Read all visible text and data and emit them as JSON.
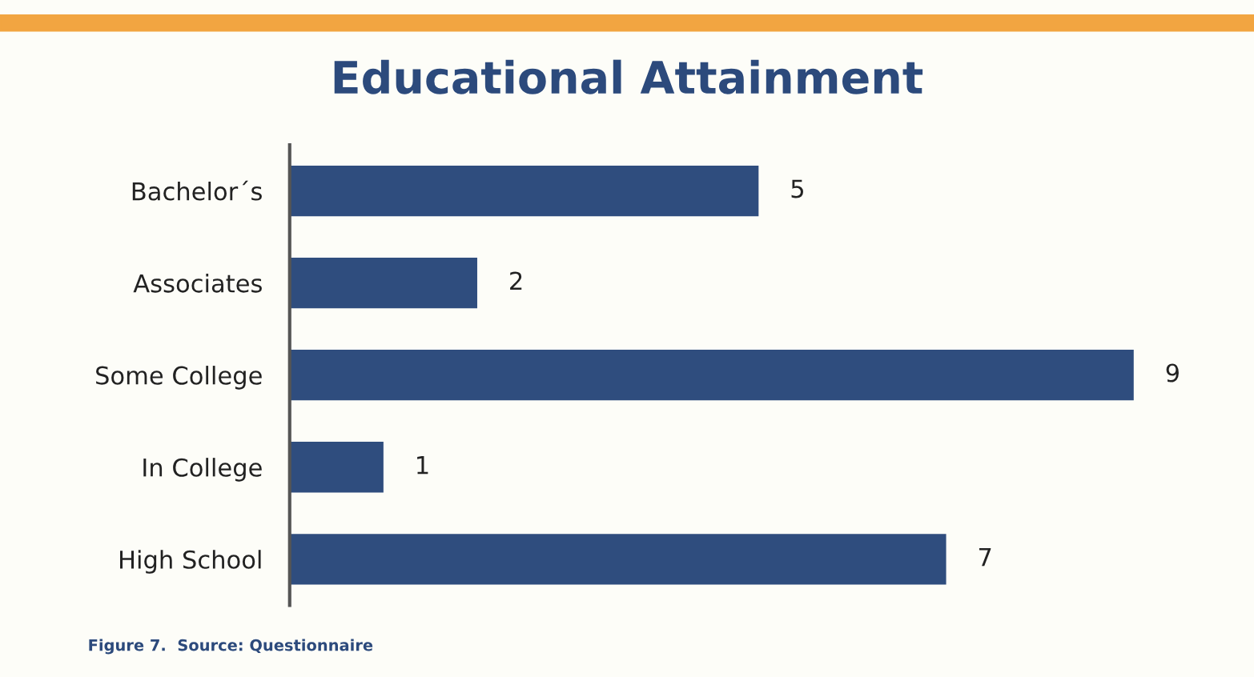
{
  "chart_data": {
    "type": "bar",
    "orientation": "horizontal",
    "title": "Educational Attainment",
    "categories": [
      "Bachelor´s",
      "Associates",
      "Some College",
      "In College",
      "High School"
    ],
    "values": [
      5,
      2,
      9,
      1,
      7
    ],
    "color": "#2f4d7e",
    "data_labels": true,
    "grid": false,
    "legend": false,
    "annotations": [
      "Figure 7.  Source: Questionnaire"
    ]
  }
}
